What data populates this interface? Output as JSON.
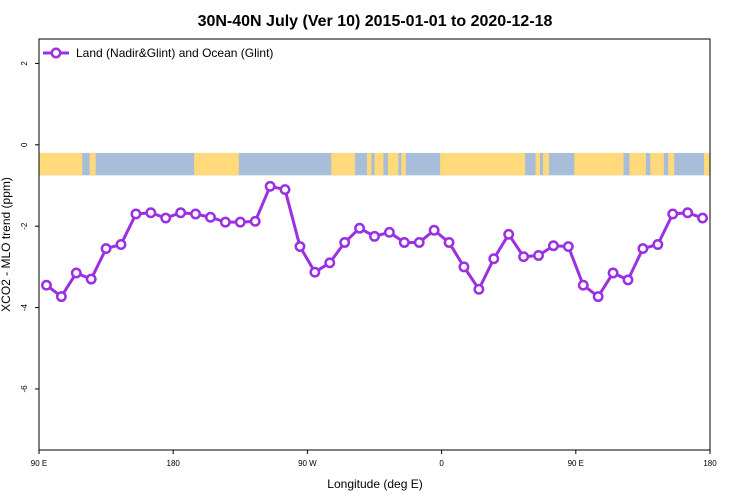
{
  "chart_data": {
    "type": "line",
    "title": "30N-40N July (Ver 10)   2015-01-01 to 2020-12-18",
    "xlabel": "Longitude (deg E)",
    "ylabel": "XCO2 - MLO trend (ppm)",
    "xlim": [
      90,
      540
    ],
    "ylim": [
      -7.5,
      2.6
    ],
    "x_ticks": [
      {
        "value": 90,
        "label": "90 E"
      },
      {
        "value": 180,
        "label": "180"
      },
      {
        "value": 270,
        "label": "90 W"
      },
      {
        "value": 360,
        "label": "0"
      },
      {
        "value": 450,
        "label": "90 E"
      },
      {
        "value": 540,
        "label": "180"
      }
    ],
    "y_ticks": [
      {
        "value": 2,
        "label": "2"
      },
      {
        "value": 0,
        "label": "0"
      },
      {
        "value": -2,
        "label": "-2"
      },
      {
        "value": -4,
        "label": "-4"
      },
      {
        "value": -6,
        "label": "-6"
      }
    ],
    "legend_position": "top-left",
    "grid": false,
    "colors": {
      "series": "#9B30E0",
      "land": "#FFD97A",
      "ocean": "#A7BDDA"
    },
    "land_ocean_band": {
      "y_range": [
        -0.75,
        -0.2
      ],
      "land_intervals": [
        [
          90,
          119
        ],
        [
          124,
          128
        ],
        [
          194,
          224
        ],
        [
          286,
          302
        ],
        [
          310,
          313
        ],
        [
          315,
          321
        ],
        [
          324,
          331
        ],
        [
          333,
          336
        ],
        [
          359,
          416
        ],
        [
          423,
          426
        ],
        [
          428,
          432
        ],
        [
          449,
          482
        ],
        [
          486,
          497
        ],
        [
          500,
          509
        ],
        [
          512,
          516
        ],
        [
          536,
          540
        ]
      ]
    },
    "series": [
      {
        "name": "Land (Nadir&Glint) and Ocean (Glint)",
        "x": [
          95,
          105,
          115,
          125,
          135,
          145,
          155,
          165,
          175,
          185,
          195,
          205,
          215,
          225,
          235,
          245,
          255,
          265,
          275,
          285,
          295,
          305,
          315,
          325,
          335,
          345,
          355,
          365,
          375,
          385,
          395,
          405,
          415,
          425,
          435,
          445,
          455,
          465,
          475,
          485,
          495,
          505,
          515,
          525,
          535
        ],
        "y": [
          -3.45,
          -3.73,
          -3.15,
          -3.3,
          -2.55,
          -2.45,
          -1.7,
          -1.67,
          -1.8,
          -1.67,
          -1.7,
          -1.78,
          -1.9,
          -1.9,
          -1.88,
          -1.02,
          -1.1,
          -2.5,
          -3.13,
          -2.9,
          -2.4,
          -2.05,
          -2.25,
          -2.15,
          -2.4,
          -2.4,
          -2.1,
          -2.4,
          -3.0,
          -3.55,
          -2.8,
          -2.2,
          -2.75,
          -2.72,
          -2.48,
          -2.5,
          -3.45,
          -3.73,
          -3.15,
          -3.32,
          -2.55,
          -2.45,
          -1.7,
          -1.67,
          -1.8
        ]
      }
    ]
  }
}
